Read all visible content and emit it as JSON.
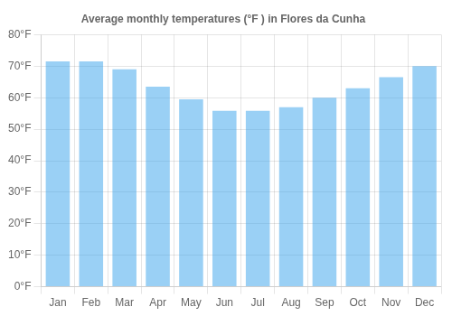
{
  "chart_data": {
    "type": "bar",
    "title": "Average monthly temperatures (°F ) in Flores da Cunha",
    "categories": [
      "Jan",
      "Feb",
      "Mar",
      "Apr",
      "May",
      "Jun",
      "Jul",
      "Aug",
      "Sep",
      "Oct",
      "Nov",
      "Dec"
    ],
    "values": [
      71.5,
      71.5,
      69.0,
      63.5,
      59.5,
      55.8,
      55.8,
      57.0,
      60.0,
      63.0,
      66.5,
      70.0
    ],
    "ylim": [
      0,
      80
    ],
    "yticks": [
      {
        "value": 0,
        "label": "0°F"
      },
      {
        "value": 10,
        "label": "10°F"
      },
      {
        "value": 20,
        "label": "20°F"
      },
      {
        "value": 30,
        "label": "30°F"
      },
      {
        "value": 40,
        "label": "40°F"
      },
      {
        "value": 50,
        "label": "50°F"
      },
      {
        "value": 60,
        "label": "60°F"
      },
      {
        "value": 70,
        "label": "70°F"
      },
      {
        "value": 80,
        "label": "80°F"
      }
    ],
    "grid": true
  }
}
